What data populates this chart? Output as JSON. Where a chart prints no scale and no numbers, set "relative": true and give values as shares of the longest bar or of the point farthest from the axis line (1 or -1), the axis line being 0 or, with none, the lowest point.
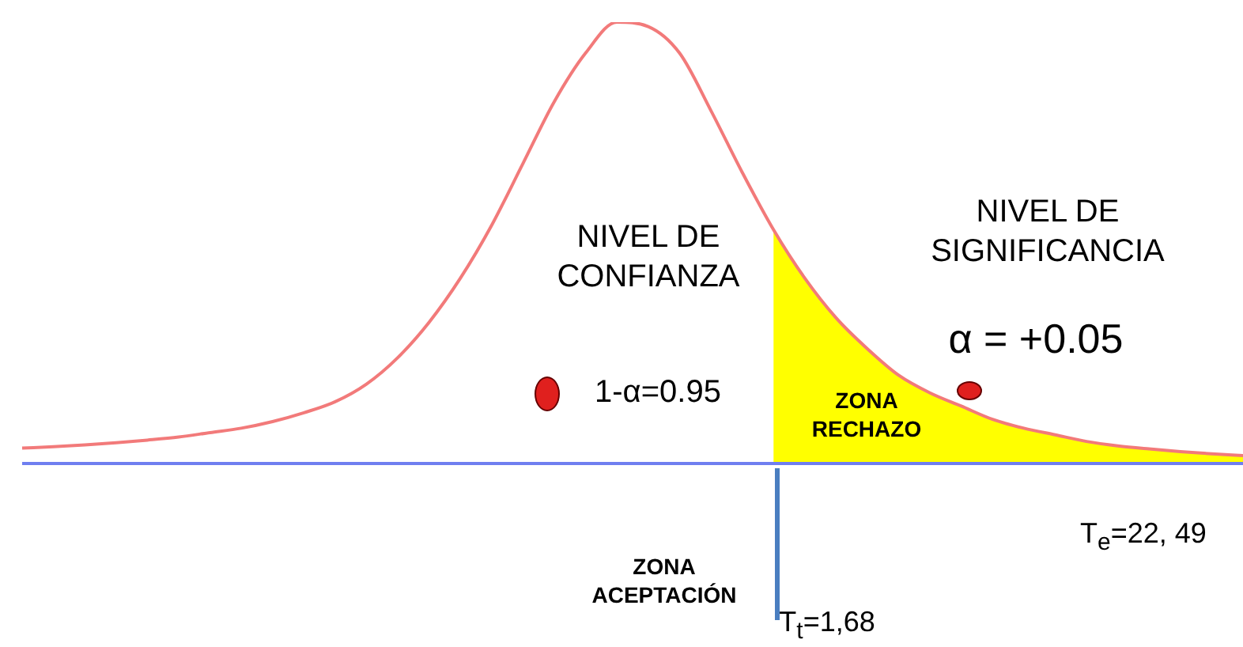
{
  "chart_data": {
    "type": "line",
    "relative": true,
    "categories": [
      null,
      null,
      null,
      null,
      null,
      null,
      null,
      null,
      null,
      null,
      null,
      null,
      null,
      null,
      null,
      null,
      null,
      null,
      null,
      null,
      null,
      null,
      null,
      null,
      null,
      null,
      null,
      null,
      null,
      null,
      null,
      null,
      null,
      null,
      null,
      null,
      null,
      null,
      null,
      null
    ],
    "series": [
      {
        "color": "#f27a7a",
        "values": [
          0.035,
          0.038,
          0.042,
          0.047,
          0.053,
          0.06,
          0.07,
          0.08,
          0.095,
          0.115,
          0.14,
          0.18,
          0.24,
          0.32,
          0.42,
          0.54,
          0.68,
          0.82,
          0.93,
          1,
          0.99,
          0.93,
          0.8,
          0.66,
          0.53,
          0.42,
          0.33,
          0.26,
          0.2,
          0.16,
          0.13,
          0.1,
          0.08,
          0.065,
          0.05,
          0.04,
          0.033,
          0.027,
          0.022,
          0.018
        ]
      },
      {
        "type": "area",
        "color": "#ffff00",
        "values": [
          null,
          null,
          null,
          null,
          null,
          null,
          null,
          null,
          null,
          null,
          null,
          null,
          null,
          null,
          null,
          null,
          null,
          null,
          null,
          null,
          null,
          null,
          null,
          null,
          0.53,
          0.42,
          0.33,
          0.26,
          0.2,
          0.16,
          0.13,
          0.1,
          0.08,
          0.065,
          0.05,
          0.04,
          0.033,
          0.027,
          0.022,
          0.018
        ]
      }
    ],
    "annotations": [
      "NIVEL DE CONFIANZA",
      "NIVEL DE SIGNIFICANCIA",
      "α = +0.05",
      "1-α=0.95",
      "ZONA RECHAZO",
      "ZONA ACEPTACIÓN",
      "T$_{t}$=1,68",
      "T$_{e}$=22, 49"
    ]
  }
}
